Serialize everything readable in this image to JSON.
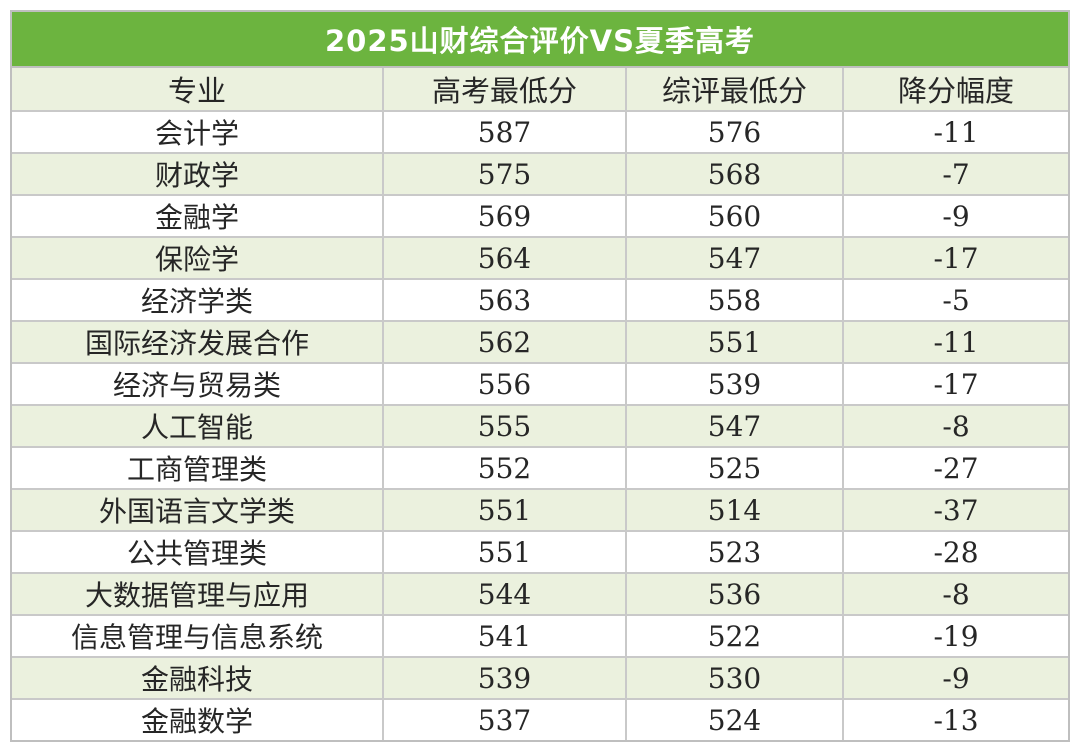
{
  "title": "2025山财综合评价VS夏季高考",
  "header": {
    "major": "专业",
    "gaokao_min": "高考最低分",
    "zongping_min": "综评最低分",
    "drop": "降分幅度"
  },
  "rows": [
    {
      "major": "会计学",
      "gaokao": "587",
      "zongping": "576",
      "drop": "-11"
    },
    {
      "major": "财政学",
      "gaokao": "575",
      "zongping": "568",
      "drop": "-7"
    },
    {
      "major": "金融学",
      "gaokao": "569",
      "zongping": "560",
      "drop": "-9"
    },
    {
      "major": "保险学",
      "gaokao": "564",
      "zongping": "547",
      "drop": "-17"
    },
    {
      "major": "经济学类",
      "gaokao": "563",
      "zongping": "558",
      "drop": "-5"
    },
    {
      "major": "国际经济发展合作",
      "gaokao": "562",
      "zongping": "551",
      "drop": "-11"
    },
    {
      "major": "经济与贸易类",
      "gaokao": "556",
      "zongping": "539",
      "drop": "-17"
    },
    {
      "major": "人工智能",
      "gaokao": "555",
      "zongping": "547",
      "drop": "-8"
    },
    {
      "major": "工商管理类",
      "gaokao": "552",
      "zongping": "525",
      "drop": "-27"
    },
    {
      "major": "外国语言文学类",
      "gaokao": "551",
      "zongping": "514",
      "drop": "-37"
    },
    {
      "major": "公共管理类",
      "gaokao": "551",
      "zongping": "523",
      "drop": "-28"
    },
    {
      "major": "大数据管理与应用",
      "gaokao": "544",
      "zongping": "536",
      "drop": "-8"
    },
    {
      "major": "信息管理与信息系统",
      "gaokao": "541",
      "zongping": "522",
      "drop": "-19"
    },
    {
      "major": "金融科技",
      "gaokao": "539",
      "zongping": "530",
      "drop": "-9"
    },
    {
      "major": "金融数学",
      "gaokao": "537",
      "zongping": "524",
      "drop": "-13"
    }
  ]
}
